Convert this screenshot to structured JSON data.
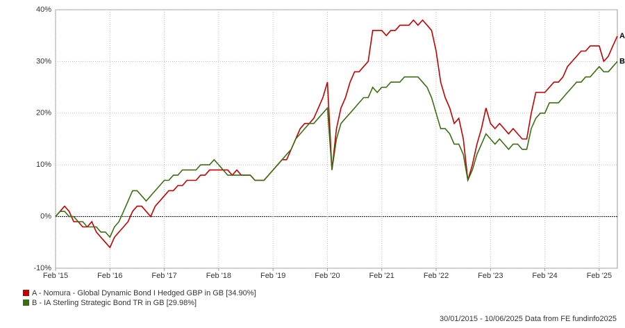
{
  "chart_data": {
    "type": "line",
    "x": [
      "2015-02",
      "2015-03",
      "2015-04",
      "2015-05",
      "2015-06",
      "2015-07",
      "2015-08",
      "2015-09",
      "2015-10",
      "2015-11",
      "2015-12",
      "2016-01",
      "2016-02",
      "2016-03",
      "2016-04",
      "2016-05",
      "2016-06",
      "2016-07",
      "2016-08",
      "2016-09",
      "2016-10",
      "2016-11",
      "2016-12",
      "2017-01",
      "2017-02",
      "2017-03",
      "2017-04",
      "2017-05",
      "2017-06",
      "2017-07",
      "2017-08",
      "2017-09",
      "2017-10",
      "2017-11",
      "2017-12",
      "2018-01",
      "2018-02",
      "2018-03",
      "2018-04",
      "2018-05",
      "2018-06",
      "2018-07",
      "2018-08",
      "2018-09",
      "2018-10",
      "2018-11",
      "2018-12",
      "2019-01",
      "2019-02",
      "2019-03",
      "2019-04",
      "2019-05",
      "2019-06",
      "2019-07",
      "2019-08",
      "2019-09",
      "2019-10",
      "2019-11",
      "2019-12",
      "2020-01",
      "2020-02",
      "2020-03",
      "2020-04",
      "2020-05",
      "2020-06",
      "2020-07",
      "2020-08",
      "2020-09",
      "2020-10",
      "2020-11",
      "2020-12",
      "2021-01",
      "2021-02",
      "2021-03",
      "2021-04",
      "2021-05",
      "2021-06",
      "2021-07",
      "2021-08",
      "2021-09",
      "2021-10",
      "2021-11",
      "2021-12",
      "2022-01",
      "2022-02",
      "2022-03",
      "2022-04",
      "2022-05",
      "2022-06",
      "2022-07",
      "2022-08",
      "2022-09",
      "2022-10",
      "2022-11",
      "2022-12",
      "2023-01",
      "2023-02",
      "2023-03",
      "2023-04",
      "2023-05",
      "2023-06",
      "2023-07",
      "2023-08",
      "2023-09",
      "2023-10",
      "2023-11",
      "2023-12",
      "2024-01",
      "2024-02",
      "2024-03",
      "2024-04",
      "2024-05",
      "2024-06",
      "2024-07",
      "2024-08",
      "2024-09",
      "2024-10",
      "2024-11",
      "2024-12",
      "2025-01",
      "2025-02",
      "2025-03",
      "2025-04",
      "2025-05",
      "2025-06"
    ],
    "series": [
      {
        "name": "A - Nomura - Global Dynamic Bond I Hedged GBP in GB [34.90%]",
        "end_label": "A",
        "color": "#c00000",
        "values": [
          0,
          1,
          2,
          1,
          -1,
          -1,
          -2,
          -2,
          -1,
          -3,
          -4,
          -5,
          -6,
          -4,
          -3,
          -2,
          -1,
          1,
          2,
          2,
          1,
          0,
          2,
          3,
          4,
          5,
          5,
          6,
          6,
          7,
          7,
          7,
          8,
          8,
          9,
          9,
          9,
          9,
          9,
          8,
          9,
          8,
          8,
          8,
          7,
          7,
          7,
          8,
          9,
          10,
          11,
          11,
          13,
          15,
          17,
          18,
          18,
          19,
          21,
          23,
          26,
          9,
          17,
          21,
          23,
          26,
          28,
          28,
          29,
          30,
          36,
          36,
          36,
          35,
          36,
          36,
          37,
          37,
          37,
          38,
          37,
          38,
          37,
          36,
          32,
          26,
          23,
          21,
          18,
          19,
          15,
          7,
          10,
          14,
          17,
          21,
          18,
          17,
          18,
          17,
          16,
          17,
          16,
          15,
          15,
          20,
          24,
          24,
          24,
          25,
          26,
          26,
          27,
          29,
          30,
          31,
          32,
          32,
          33,
          33,
          33,
          30,
          31,
          33,
          34.9
        ]
      },
      {
        "name": "B - IA Sterling Strategic Bond TR in GB [29.98%]",
        "end_label": "B",
        "color": "#3a6e12",
        "values": [
          0,
          1,
          1,
          0,
          0,
          -1,
          -1,
          -2,
          -2,
          -2,
          -3,
          -3,
          -4,
          -2,
          -1,
          1,
          3,
          5,
          5,
          4,
          3,
          4,
          5,
          6,
          7,
          7,
          8,
          8,
          9,
          9,
          9,
          9,
          10,
          10,
          10,
          11,
          10,
          9,
          8,
          8,
          8,
          8,
          8,
          8,
          7,
          7,
          7,
          8,
          9,
          10,
          11,
          12,
          13,
          15,
          16,
          17,
          18,
          18,
          19,
          20,
          21,
          9,
          15,
          18,
          19,
          20,
          21,
          22,
          23,
          23,
          25,
          24,
          25,
          25,
          26,
          26,
          26,
          27,
          27,
          27,
          27,
          26,
          25,
          23,
          20,
          17,
          17,
          16,
          14,
          14,
          12,
          7,
          9,
          12,
          14,
          16,
          15,
          14,
          15,
          14,
          13,
          14,
          14,
          13,
          13,
          17,
          19,
          20,
          20,
          22,
          22,
          22,
          23,
          24,
          25,
          26,
          26,
          27,
          27,
          28,
          29,
          28,
          28,
          29,
          29.98
        ]
      }
    ],
    "xlim": [
      "2015-02",
      "2025-06"
    ],
    "xticks": [
      {
        "value": "2015-02",
        "label": "Feb '15"
      },
      {
        "value": "2016-02",
        "label": "Feb '16"
      },
      {
        "value": "2017-02",
        "label": "Feb '17"
      },
      {
        "value": "2018-02",
        "label": "Feb '18"
      },
      {
        "value": "2019-02",
        "label": "Feb '19"
      },
      {
        "value": "2020-02",
        "label": "Feb '20"
      },
      {
        "value": "2021-02",
        "label": "Feb '21"
      },
      {
        "value": "2022-02",
        "label": "Feb '22"
      },
      {
        "value": "2023-02",
        "label": "Feb '23"
      },
      {
        "value": "2024-02",
        "label": "Feb '24"
      },
      {
        "value": "2025-02",
        "label": "Feb '25"
      }
    ],
    "ylim": [
      -10,
      40
    ],
    "yticks": [
      {
        "value": -10,
        "label": "-10%"
      },
      {
        "value": 0,
        "label": "0%"
      },
      {
        "value": 10,
        "label": "10%"
      },
      {
        "value": 20,
        "label": "20%"
      },
      {
        "value": 30,
        "label": "30%"
      },
      {
        "value": 40,
        "label": "40%"
      }
    ],
    "grid": true,
    "footer": "30/01/2015 - 10/06/2025 Data from FE fundinfo2025"
  }
}
